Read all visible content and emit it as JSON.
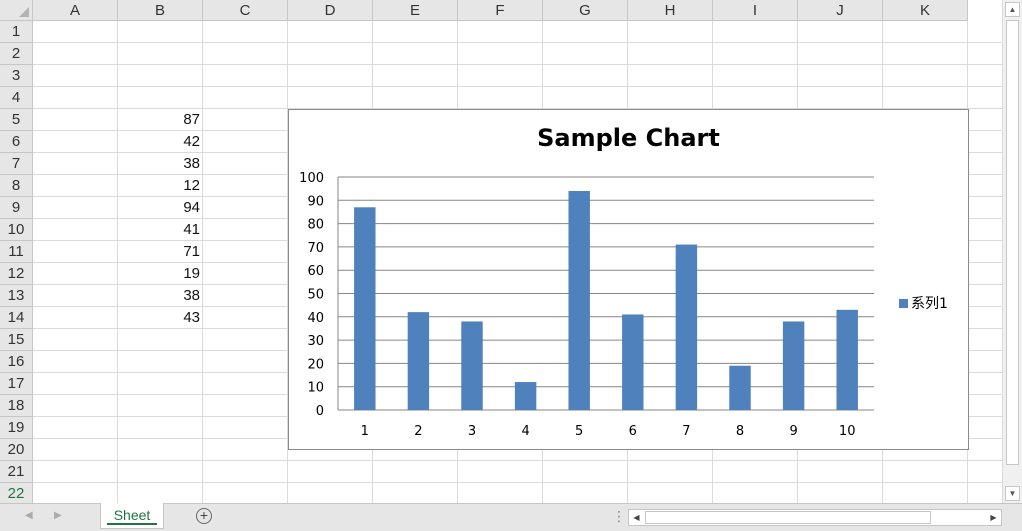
{
  "columns": [
    "A",
    "B",
    "C",
    "D",
    "E",
    "F",
    "G",
    "H",
    "I",
    "J",
    "K"
  ],
  "rows": [
    "1",
    "2",
    "3",
    "4",
    "5",
    "6",
    "7",
    "8",
    "9",
    "10",
    "11",
    "12",
    "13",
    "14",
    "15",
    "16",
    "17",
    "18",
    "19",
    "20",
    "21",
    "22"
  ],
  "cells_b": [
    {
      "row": 5,
      "value": "87"
    },
    {
      "row": 6,
      "value": "42"
    },
    {
      "row": 7,
      "value": "38"
    },
    {
      "row": 8,
      "value": "12"
    },
    {
      "row": 9,
      "value": "94"
    },
    {
      "row": 10,
      "value": "41"
    },
    {
      "row": 11,
      "value": "71"
    },
    {
      "row": 12,
      "value": "19"
    },
    {
      "row": 13,
      "value": "38"
    },
    {
      "row": 14,
      "value": "43"
    }
  ],
  "chart_data": {
    "type": "bar",
    "title": "Sample Chart",
    "categories": [
      "1",
      "2",
      "3",
      "4",
      "5",
      "6",
      "7",
      "8",
      "9",
      "10"
    ],
    "series": [
      {
        "name": "系列1",
        "values": [
          87,
          42,
          38,
          12,
          94,
          41,
          71,
          19,
          38,
          43
        ],
        "color": "#4f81bd"
      }
    ],
    "ylim": [
      0,
      100
    ],
    "yticks": [
      "0",
      "10",
      "20",
      "30",
      "40",
      "50",
      "60",
      "70",
      "80",
      "90",
      "100"
    ],
    "grid": true,
    "legend": "right"
  },
  "sheet_tab": {
    "label": "Sheet"
  },
  "colors": {
    "accent": "#217346",
    "bar": "#4f81bd"
  }
}
